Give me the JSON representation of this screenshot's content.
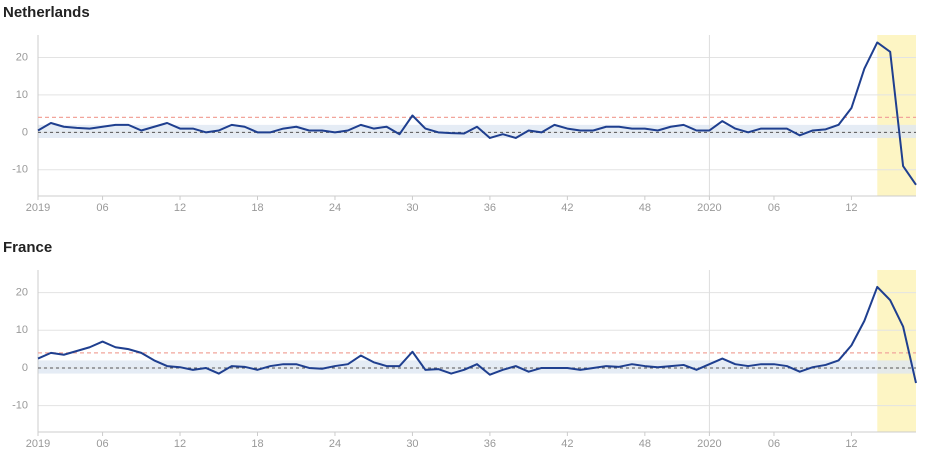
{
  "chart_data": [
    {
      "type": "line",
      "title": "Netherlands",
      "categories": [
        "2019",
        null,
        null,
        null,
        null,
        "06",
        null,
        null,
        null,
        null,
        null,
        "12",
        null,
        null,
        null,
        null,
        null,
        "18",
        null,
        null,
        null,
        null,
        null,
        "24",
        null,
        null,
        null,
        null,
        null,
        "30",
        null,
        null,
        null,
        null,
        null,
        "36",
        null,
        null,
        null,
        null,
        null,
        "42",
        null,
        null,
        null,
        null,
        null,
        "48",
        null,
        null,
        null,
        null,
        "2020",
        null,
        null,
        null,
        null,
        "06",
        null,
        null,
        null,
        null,
        null,
        "12",
        null,
        null,
        null,
        null,
        null
      ],
      "values": [
        0.5,
        2.5,
        1.5,
        1.2,
        1,
        1.5,
        2,
        2,
        0.5,
        1.5,
        2.5,
        1,
        1,
        0,
        0.5,
        2,
        1.5,
        0,
        0,
        1,
        1.5,
        0.5,
        0.5,
        0,
        0.5,
        2,
        1,
        1.5,
        -0.5,
        4.5,
        1,
        0,
        -0.2,
        -0.3,
        1.5,
        -1.5,
        -0.5,
        -1.5,
        0.5,
        0,
        2,
        1,
        0.5,
        0.5,
        1.5,
        1.5,
        1,
        1,
        0.5,
        1.5,
        2,
        0.5,
        0.5,
        3,
        1,
        0,
        1,
        1,
        1,
        -0.8,
        0.5,
        0.8,
        2,
        6.5,
        17,
        24,
        21.5,
        -9,
        -14
      ],
      "color": "#1f3f8f",
      "ylim": [
        -17,
        26
      ],
      "yticks": [
        -10,
        0,
        10,
        20
      ],
      "grid": true,
      "threshold": 4,
      "baseline": 0,
      "band": [
        -1.5,
        2
      ],
      "highlight": [
        65,
        68
      ],
      "year_divider": 52
    },
    {
      "type": "line",
      "title": "France",
      "categories": [
        "2019",
        null,
        null,
        null,
        null,
        "06",
        null,
        null,
        null,
        null,
        null,
        "12",
        null,
        null,
        null,
        null,
        null,
        "18",
        null,
        null,
        null,
        null,
        null,
        "24",
        null,
        null,
        null,
        null,
        null,
        "30",
        null,
        null,
        null,
        null,
        null,
        "36",
        null,
        null,
        null,
        null,
        null,
        "42",
        null,
        null,
        null,
        null,
        null,
        "48",
        null,
        null,
        null,
        null,
        "2020",
        null,
        null,
        null,
        null,
        "06",
        null,
        null,
        null,
        null,
        null,
        "12",
        null,
        null,
        null,
        null,
        null
      ],
      "values": [
        2.5,
        4,
        3.5,
        4.5,
        5.5,
        7,
        5.5,
        5,
        4,
        2,
        0.5,
        0.2,
        -0.5,
        0,
        -1.5,
        0.5,
        0.3,
        -0.5,
        0.5,
        1,
        1,
        0,
        -0.2,
        0.5,
        1,
        3.3,
        1.5,
        0.5,
        0.5,
        4.3,
        -0.5,
        -0.3,
        -1.5,
        -0.5,
        1,
        -1.8,
        -0.5,
        0.5,
        -1,
        0,
        0,
        0,
        -0.5,
        0,
        0.5,
        0.3,
        1,
        0.5,
        0.2,
        0.5,
        0.8,
        -0.5,
        1,
        2.5,
        1,
        0.5,
        1,
        1,
        0.5,
        -1,
        0.2,
        0.8,
        2,
        6,
        12.5,
        21.5,
        18,
        11,
        -4
      ],
      "color": "#1f3f8f",
      "ylim": [
        -17,
        26
      ],
      "yticks": [
        -10,
        0,
        10,
        20
      ],
      "grid": true,
      "threshold": 4,
      "baseline": 0,
      "band": [
        -1.5,
        2
      ],
      "highlight": [
        65,
        68
      ],
      "year_divider": 52
    }
  ]
}
